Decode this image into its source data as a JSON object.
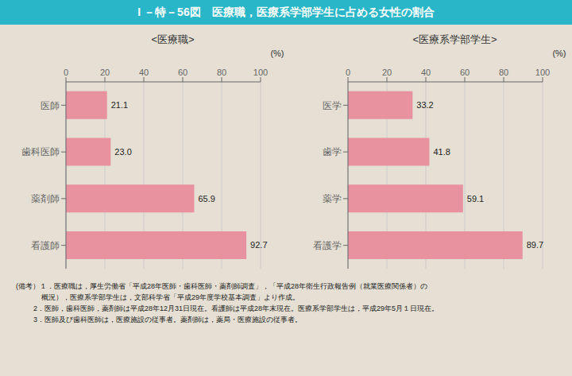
{
  "title": "I －特－56図　医療職，医療系学部学生に占める女性の割合",
  "annotations": [
    "(備考）１．医療職は，厚生労働省「平成28年医師・歯科医師・薬剤師調査」，「平成28年衛生行政報告例（就業医療関係者）の",
    "概況），医療系学部学生は，文部科学省「平成29年度学校基本調査」より作成。",
    "2．医師，歯科医師，薬剤師は平成28年12月31日現在。看護師は平成28年末現在。医療系学部学生は，平成29年5月１日現在。",
    "3．医師及び歯科医師は，医療施設の従事者。薬剤師は，薬局・医療施設の従事者。"
  ],
  "chart_data": [
    {
      "type": "bar",
      "orientation": "horizontal",
      "title": "<医療職>",
      "categories": [
        "医師",
        "歯科医師",
        "薬剤師",
        "看護師"
      ],
      "values": [
        21.1,
        23.0,
        65.9,
        92.7
      ],
      "value_labels": [
        "21.1",
        "23.0",
        "65.9",
        "92.7"
      ],
      "color": "#e8919f",
      "xlim": [
        0,
        100
      ],
      "xticks": [
        0,
        20,
        40,
        60,
        80,
        100
      ],
      "xlabel": "(%)",
      "grid": true,
      "data_labels": true
    },
    {
      "type": "bar",
      "orientation": "horizontal",
      "title": "<医療系学部学生>",
      "categories": [
        "医学",
        "歯学",
        "薬学",
        "看護学"
      ],
      "values": [
        33.2,
        41.8,
        59.1,
        89.7
      ],
      "color": "#e8919f",
      "xlim": [
        0,
        100
      ],
      "xticks": [
        0,
        20,
        40,
        60,
        80,
        100
      ],
      "xlabel": "(%)",
      "grid": true,
      "data_labels": true
    }
  ]
}
